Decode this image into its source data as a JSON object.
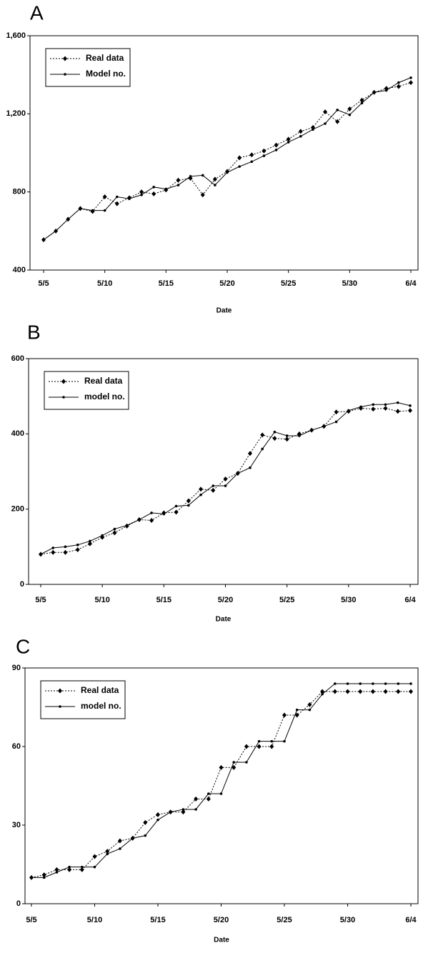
{
  "chart_data": [
    {
      "type": "line",
      "title": "A",
      "x_label": "Date",
      "categories": [
        "5/5",
        null,
        null,
        null,
        null,
        "5/10",
        null,
        null,
        null,
        null,
        "5/15",
        null,
        null,
        null,
        null,
        "5/20",
        null,
        null,
        null,
        null,
        "5/25",
        null,
        null,
        null,
        null,
        "5/30",
        null,
        null,
        null,
        null,
        "6/4"
      ],
      "series": [
        {
          "name": "Real data",
          "color": "#000000",
          "style": "dotted",
          "marker": "diamond",
          "values": [
            555,
            600,
            660,
            715,
            700,
            775,
            740,
            770,
            800,
            790,
            810,
            860,
            870,
            785,
            865,
            905,
            975,
            990,
            1010,
            1040,
            1070,
            1110,
            1130,
            1210,
            1160,
            1225,
            1270,
            1310,
            1330,
            1340,
            1360
          ]
        },
        {
          "name": "Model no.",
          "color": "#000000",
          "style": "solid",
          "marker": "dot",
          "values": [
            555,
            600,
            660,
            715,
            705,
            705,
            775,
            765,
            785,
            825,
            815,
            835,
            880,
            885,
            835,
            900,
            930,
            955,
            985,
            1015,
            1055,
            1085,
            1120,
            1150,
            1220,
            1195,
            1255,
            1310,
            1320,
            1360,
            1385
          ]
        }
      ],
      "ylim": [
        400,
        1600
      ],
      "yticks": [
        400,
        800,
        {
          "value": 1200,
          "label": "1,200"
        },
        {
          "value": 1600,
          "label": "1,600"
        }
      ],
      "legend": "upper left",
      "grid": false
    },
    {
      "type": "line",
      "title": "B",
      "x_label": "Date",
      "categories": [
        "5/5",
        null,
        null,
        null,
        null,
        "5/10",
        null,
        null,
        null,
        null,
        "5/15",
        null,
        null,
        null,
        null,
        "5/20",
        null,
        null,
        null,
        null,
        "5/25",
        null,
        null,
        null,
        null,
        "5/30",
        null,
        null,
        null,
        null,
        "6/4"
      ],
      "series": [
        {
          "name": "Real data",
          "color": "#000000",
          "style": "dotted",
          "marker": "diamond",
          "values": [
            80,
            85,
            85,
            92,
            108,
            125,
            137,
            155,
            172,
            170,
            190,
            192,
            222,
            253,
            250,
            280,
            295,
            348,
            397,
            388,
            386,
            400,
            410,
            420,
            458,
            460,
            468,
            466,
            468,
            460,
            462
          ]
        },
        {
          "name": "model no.",
          "color": "#000000",
          "style": "solid",
          "marker": "dot",
          "values": [
            80,
            97,
            100,
            105,
            115,
            130,
            147,
            157,
            172,
            190,
            187,
            208,
            210,
            238,
            262,
            262,
            295,
            310,
            360,
            405,
            395,
            395,
            410,
            420,
            432,
            462,
            472,
            478,
            478,
            483,
            475
          ]
        }
      ],
      "ylim": [
        0,
        600
      ],
      "yticks": [
        0,
        200,
        400,
        600
      ],
      "legend": "upper left",
      "grid": false
    },
    {
      "type": "line",
      "title": "C",
      "x_label": "Date",
      "categories": [
        "5/5",
        null,
        null,
        null,
        null,
        "5/10",
        null,
        null,
        null,
        null,
        "5/15",
        null,
        null,
        null,
        null,
        "5/20",
        null,
        null,
        null,
        null,
        "5/25",
        null,
        null,
        null,
        null,
        "5/30",
        null,
        null,
        null,
        null,
        "6/4"
      ],
      "series": [
        {
          "name": "Real data",
          "color": "#000000",
          "style": "dotted",
          "marker": "diamond",
          "values": [
            10,
            11,
            13,
            13,
            13,
            18,
            20,
            24,
            25,
            31,
            34,
            35,
            35,
            40,
            40,
            52,
            52,
            60,
            60,
            60,
            72,
            72,
            76,
            81,
            81,
            81,
            81,
            81,
            81,
            81,
            81
          ]
        },
        {
          "name": "model no.",
          "color": "#000000",
          "style": "solid",
          "marker": "dot",
          "values": [
            10,
            10,
            12,
            14,
            14,
            14,
            19,
            21,
            25,
            26,
            32,
            35,
            36,
            36,
            42,
            42,
            54,
            54,
            62,
            62,
            62,
            74,
            74,
            80,
            84,
            84,
            84,
            84,
            84,
            84,
            84
          ]
        }
      ],
      "ylim": [
        0,
        90
      ],
      "yticks": [
        0,
        30,
        60,
        90
      ],
      "legend": "upper left",
      "grid": false
    }
  ]
}
